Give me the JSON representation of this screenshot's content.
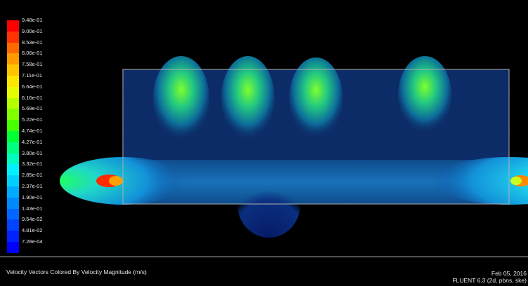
{
  "legend": {
    "labels": [
      "9.48e-01",
      "9.00e-01",
      "8.53e-01",
      "8.06e-01",
      "7.58e-01",
      "7.11e-01",
      "6.64e-01",
      "6.16e-01",
      "5.69e-01",
      "5.22e-01",
      "4.74e-01",
      "4.27e-01",
      "3.80e-01",
      "3.32e-01",
      "2.85e-01",
      "2.37e-01",
      "1.90e-01",
      "1.43e-01",
      "9.54e-02",
      "4.81e-02",
      "7.28e-04"
    ],
    "colors": [
      "#ff0000",
      "#ff3300",
      "#ff6a00",
      "#ff9a00",
      "#ffc400",
      "#ffe600",
      "#e6ff00",
      "#b6ff00",
      "#80ff00",
      "#48ff00",
      "#00ff33",
      "#00ff80",
      "#00ffbf",
      "#00f0ff",
      "#00d0ff",
      "#00aaff",
      "#0088ff",
      "#0066ff",
      "#0044ff",
      "#0022ff",
      "#0000ff"
    ]
  },
  "footer": {
    "caption": "Velocity Vectors Colored By Velocity Magnitude (m/s)",
    "date": "Feb 05, 2016",
    "solver": "FLUENT 6.3 (2d, pbns, ske)"
  },
  "colors": {
    "background": "#000000",
    "domain_outline": "#b0b0b0",
    "text": "#e6e6e6"
  }
}
